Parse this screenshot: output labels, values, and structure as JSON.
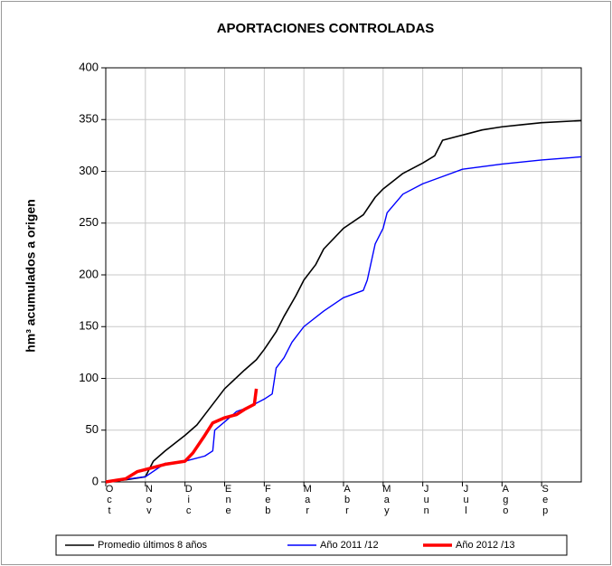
{
  "chart_data": {
    "type": "line",
    "title": "APORTACIONES CONTROLADAS",
    "y_label": "hm³ acumulados a origen",
    "categories": [
      "Oct",
      "Nov",
      "Dic",
      "Ene",
      "Feb",
      "Mar",
      "Abr",
      "May",
      "Jun",
      "Jul",
      "Ago",
      "Sep"
    ],
    "xlim": [
      0,
      12
    ],
    "ylim": [
      0,
      400
    ],
    "yticks": [
      0,
      50,
      100,
      150,
      200,
      250,
      300,
      350,
      400
    ],
    "grid": true,
    "legend": "bottom",
    "series": [
      {
        "name": "Promedio últimos 8 años",
        "color": "#000000",
        "width": 1.6,
        "x": [
          0,
          0.5,
          1,
          1.2,
          1.5,
          2,
          2.3,
          2.5,
          3,
          3.5,
          3.8,
          4,
          4.3,
          4.5,
          4.8,
          5,
          5.3,
          5.5,
          6,
          6.5,
          6.8,
          7,
          7.5,
          8,
          8.3,
          8.5,
          9,
          9.5,
          10,
          10.5,
          11,
          12
        ],
        "values": [
          0,
          2,
          5,
          20,
          30,
          45,
          55,
          65,
          90,
          108,
          118,
          128,
          145,
          160,
          180,
          195,
          210,
          225,
          245,
          258,
          275,
          283,
          298,
          308,
          315,
          330,
          335,
          340,
          343,
          345,
          347,
          349
        ]
      },
      {
        "name": "Año 2011 /12",
        "color": "#0000ff",
        "width": 1.4,
        "x": [
          0,
          1,
          1.5,
          2,
          2.5,
          2.7,
          2.75,
          3,
          3.3,
          3.6,
          4,
          4.2,
          4.3,
          4.5,
          4.7,
          5,
          5.5,
          6,
          6.5,
          6.6,
          6.8,
          7,
          7.1,
          7.5,
          8,
          8.5,
          9,
          10,
          11,
          12
        ],
        "values": [
          0,
          5,
          18,
          20,
          25,
          30,
          50,
          58,
          68,
          72,
          80,
          85,
          110,
          120,
          135,
          150,
          165,
          178,
          185,
          195,
          230,
          245,
          260,
          278,
          288,
          295,
          302,
          307,
          311,
          314
        ]
      },
      {
        "name": "Año 2012 /13",
        "color": "#ff0000",
        "width": 3.5,
        "x": [
          0,
          0.5,
          0.8,
          1,
          1.5,
          2,
          2.2,
          2.5,
          2.7,
          3,
          3.3,
          3.5,
          3.75,
          3.8
        ],
        "values": [
          0,
          3,
          10,
          12,
          17,
          20,
          28,
          45,
          57,
          62,
          65,
          70,
          75,
          90
        ]
      }
    ]
  }
}
